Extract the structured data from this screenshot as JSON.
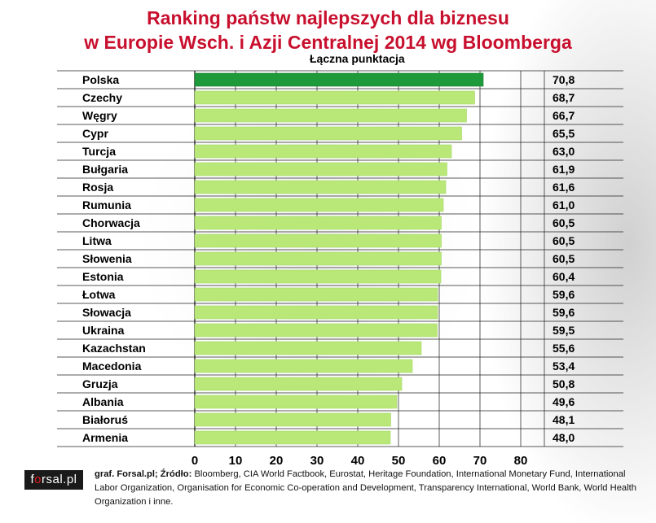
{
  "chart_data": {
    "type": "bar",
    "orientation": "horizontal",
    "title_line1": "Ranking państw najlepszych dla biznesu",
    "title_line2": "w Europie Wsch. i Azji Centralnej 2014 wg Bloomberga",
    "value_label": "Łączna punktacja",
    "categories": [
      "Polska",
      "Czechy",
      "Węgry",
      "Cypr",
      "Turcja",
      "Bułgaria",
      "Rosja",
      "Rumunia",
      "Chorwacja",
      "Litwa",
      "Słowenia",
      "Estonia",
      "Łotwa",
      "Słowacja",
      "Ukraina",
      "Kazachstan",
      "Macedonia",
      "Gruzja",
      "Albania",
      "Białoruś",
      "Armenia"
    ],
    "values": [
      70.8,
      68.7,
      66.7,
      65.5,
      63.0,
      61.9,
      61.6,
      61.0,
      60.5,
      60.5,
      60.5,
      60.4,
      59.6,
      59.6,
      59.5,
      55.6,
      53.4,
      50.8,
      49.6,
      48.1,
      48.0
    ],
    "value_labels": [
      "70,8",
      "68,7",
      "66,7",
      "65,5",
      "63,0",
      "61,9",
      "61,6",
      "61,0",
      "60,5",
      "60,5",
      "60,5",
      "60,4",
      "59,6",
      "59,6",
      "59,5",
      "55,6",
      "53,4",
      "50,8",
      "49,6",
      "48,1",
      "48,0"
    ],
    "xlim": [
      0,
      80
    ],
    "xticks": [
      "0",
      "10",
      "20",
      "30",
      "40",
      "50",
      "60",
      "70",
      "80"
    ],
    "grid": true,
    "highlight_color": "#1e9a3a",
    "bar_color": "#b9e879"
  },
  "source": {
    "bold": "graf. Forsal.pl; Źródło:",
    "text": " Bloomberg, CIA World Factbook, Eurostat, Heritage Foundation, International Monetary Fund, International Labor Organization, Organisation for Economic Co-operation and Development, Transparency International, World Bank, World Health Organization i inne."
  },
  "logo": {
    "part1": "f",
    "part2": "o",
    "part3": "rsal.pl"
  }
}
